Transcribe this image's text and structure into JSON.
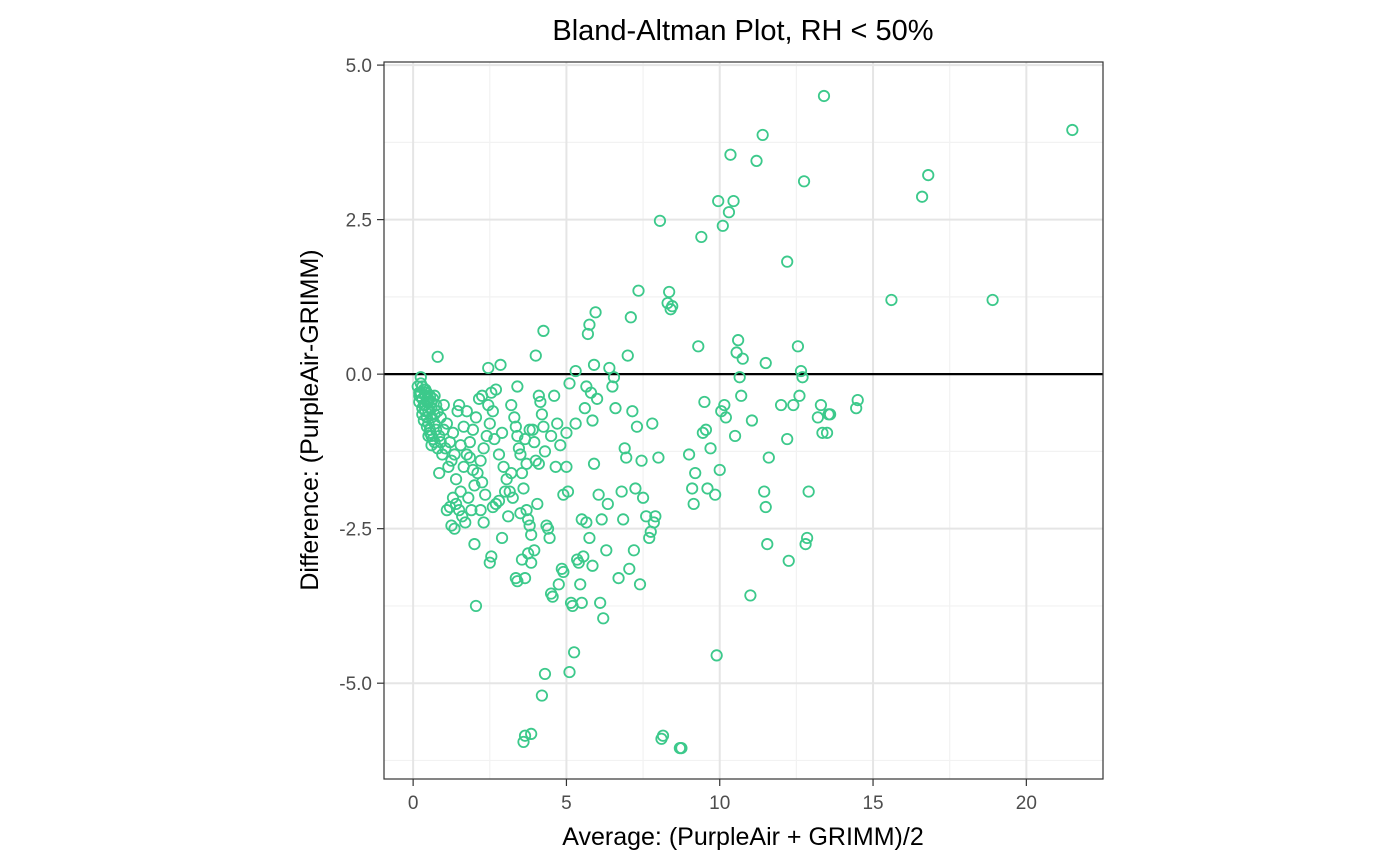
{
  "chart_data": {
    "type": "scatter",
    "title": "Bland-Altman Plot, RH < 50%",
    "xlabel": "Average: (PurpleAir + GRIMM)/2",
    "ylabel": "Difference: (PurpleAir-GRIMM)",
    "xlim": [
      -0.95,
      22.5
    ],
    "ylim": [
      -6.55,
      5.05
    ],
    "x_ticks": [
      0,
      5,
      10,
      15,
      20
    ],
    "x_tick_labels": [
      "0",
      "5",
      "10",
      "15",
      "20"
    ],
    "y_ticks": [
      5,
      2.5,
      0,
      -2.5,
      -5
    ],
    "y_tick_labels": [
      "5.0",
      "2.5",
      "0.0",
      "-2.5",
      "-5.0"
    ],
    "grid": true,
    "reference_line_y": 0,
    "point_color": "#3cc98b",
    "points": [
      [
        0.15,
        -0.2
      ],
      [
        0.2,
        -0.3
      ],
      [
        0.25,
        -0.05
      ],
      [
        0.3,
        -0.4
      ],
      [
        0.35,
        -0.5
      ],
      [
        0.4,
        -0.6
      ],
      [
        0.45,
        -0.7
      ],
      [
        0.5,
        -0.8
      ],
      [
        0.55,
        -0.9
      ],
      [
        0.6,
        -1.0
      ],
      [
        0.2,
        -0.45
      ],
      [
        0.3,
        -0.55
      ],
      [
        0.4,
        -0.35
      ],
      [
        0.5,
        -0.45
      ],
      [
        0.6,
        -0.55
      ],
      [
        0.7,
        -0.65
      ],
      [
        0.35,
        -0.75
      ],
      [
        0.45,
        -0.85
      ],
      [
        0.55,
        -0.95
      ],
      [
        0.65,
        -1.05
      ],
      [
        0.25,
        -0.3
      ],
      [
        0.35,
        -0.25
      ],
      [
        0.45,
        -0.3
      ],
      [
        0.55,
        -0.35
      ],
      [
        0.65,
        -0.4
      ],
      [
        0.75,
        -0.5
      ],
      [
        0.8,
        -0.6
      ],
      [
        0.7,
        -0.8
      ],
      [
        0.6,
        -0.7
      ],
      [
        0.5,
        -0.6
      ],
      [
        0.4,
        -0.5
      ],
      [
        0.3,
        -0.65
      ],
      [
        0.2,
        -0.35
      ],
      [
        0.75,
        -0.9
      ],
      [
        0.85,
        -1.0
      ],
      [
        0.9,
        -1.1
      ],
      [
        0.8,
        -1.2
      ],
      [
        0.7,
        -1.1
      ],
      [
        0.6,
        -1.15
      ],
      [
        0.5,
        -1.0
      ],
      [
        0.95,
        -1.3
      ],
      [
        0.85,
        -1.6
      ],
      [
        1.0,
        -0.5
      ],
      [
        1.1,
        -0.8
      ],
      [
        0.8,
        0.28
      ],
      [
        0.25,
        -0.15
      ],
      [
        0.3,
        -0.2
      ],
      [
        0.4,
        -0.25
      ],
      [
        0.5,
        -0.4
      ],
      [
        0.6,
        -0.45
      ],
      [
        0.7,
        -0.35
      ],
      [
        0.9,
        -0.7
      ],
      [
        1.0,
        -0.9
      ],
      [
        1.05,
        -1.2
      ],
      [
        1.2,
        -1.1
      ],
      [
        1.3,
        -0.95
      ],
      [
        1.15,
        -1.5
      ],
      [
        1.25,
        -1.4
      ],
      [
        1.35,
        -1.3
      ],
      [
        1.45,
        -0.6
      ],
      [
        1.5,
        -0.5
      ],
      [
        1.4,
        -1.7
      ],
      [
        1.55,
        -1.9
      ],
      [
        1.65,
        -1.5
      ],
      [
        1.75,
        -1.3
      ],
      [
        1.85,
        -1.1
      ],
      [
        1.95,
        -0.9
      ],
      [
        2.05,
        -0.7
      ],
      [
        2.15,
        -0.4
      ],
      [
        2.25,
        -0.35
      ],
      [
        1.3,
        -2.0
      ],
      [
        1.4,
        -2.1
      ],
      [
        1.5,
        -2.2
      ],
      [
        1.6,
        -2.3
      ],
      [
        1.7,
        -2.4
      ],
      [
        1.2,
        -2.15
      ],
      [
        1.1,
        -2.2
      ],
      [
        1.25,
        -2.45
      ],
      [
        1.35,
        -2.5
      ],
      [
        1.8,
        -2.0
      ],
      [
        1.9,
        -2.2
      ],
      [
        2.0,
        -1.8
      ],
      [
        2.1,
        -1.6
      ],
      [
        2.2,
        -1.4
      ],
      [
        2.3,
        -1.2
      ],
      [
        2.4,
        -1.0
      ],
      [
        2.5,
        -0.8
      ],
      [
        2.6,
        -0.6
      ],
      [
        2.7,
        -0.25
      ],
      [
        2.8,
        -1.3
      ],
      [
        2.0,
        -2.75
      ],
      [
        2.05,
        -3.75
      ],
      [
        2.2,
        -2.2
      ],
      [
        2.3,
        -2.4
      ],
      [
        2.5,
        -3.05
      ],
      [
        2.55,
        -2.95
      ],
      [
        2.6,
        -2.15
      ],
      [
        2.7,
        -2.1
      ],
      [
        2.8,
        -2.05
      ],
      [
        2.9,
        -2.65
      ],
      [
        2.45,
        0.1
      ],
      [
        2.85,
        0.15
      ],
      [
        2.95,
        -1.5
      ],
      [
        3.05,
        -1.7
      ],
      [
        3.15,
        -1.9
      ],
      [
        3.25,
        -2.0
      ],
      [
        3.1,
        -2.3
      ],
      [
        3.2,
        -0.5
      ],
      [
        3.3,
        -0.7
      ],
      [
        3.35,
        -0.85
      ],
      [
        3.4,
        -1.0
      ],
      [
        3.45,
        -1.2
      ],
      [
        3.5,
        -1.3
      ],
      [
        3.55,
        -1.6
      ],
      [
        3.6,
        -1.85
      ],
      [
        3.65,
        -1.05
      ],
      [
        3.7,
        -2.2
      ],
      [
        3.75,
        -2.35
      ],
      [
        3.8,
        -2.45
      ],
      [
        3.85,
        -2.6
      ],
      [
        3.35,
        -3.3
      ],
      [
        3.4,
        -3.35
      ],
      [
        3.55,
        -3.0
      ],
      [
        3.65,
        -3.3
      ],
      [
        3.75,
        -2.9
      ],
      [
        3.85,
        -3.05
      ],
      [
        3.95,
        -2.85
      ],
      [
        3.6,
        -5.95
      ],
      [
        3.65,
        -5.85
      ],
      [
        3.85,
        -5.82
      ],
      [
        3.4,
        -0.2
      ],
      [
        3.9,
        -0.9
      ],
      [
        3.95,
        -1.1
      ],
      [
        4.0,
        -1.4
      ],
      [
        4.05,
        -2.1
      ],
      [
        4.1,
        -0.35
      ],
      [
        4.15,
        -0.45
      ],
      [
        4.2,
        -0.65
      ],
      [
        4.25,
        -0.85
      ],
      [
        4.3,
        -1.25
      ],
      [
        4.0,
        0.3
      ],
      [
        4.25,
        0.7
      ],
      [
        4.35,
        -2.45
      ],
      [
        4.4,
        -2.5
      ],
      [
        4.45,
        -2.65
      ],
      [
        4.5,
        -3.55
      ],
      [
        4.55,
        -3.6
      ],
      [
        4.3,
        -4.85
      ],
      [
        4.2,
        -5.2
      ],
      [
        4.6,
        -0.35
      ],
      [
        4.7,
        -0.8
      ],
      [
        4.8,
        -1.15
      ],
      [
        4.85,
        -3.15
      ],
      [
        4.9,
        -3.2
      ],
      [
        4.75,
        -3.4
      ],
      [
        5.0,
        -1.5
      ],
      [
        5.05,
        -1.9
      ],
      [
        5.1,
        -0.15
      ],
      [
        5.15,
        -3.7
      ],
      [
        5.2,
        -3.75
      ],
      [
        5.1,
        -4.82
      ],
      [
        5.25,
        -4.5
      ],
      [
        5.3,
        -0.8
      ],
      [
        5.35,
        -3.0
      ],
      [
        5.4,
        -3.05
      ],
      [
        5.45,
        -3.4
      ],
      [
        5.5,
        -3.7
      ],
      [
        5.55,
        -2.95
      ],
      [
        5.6,
        -0.55
      ],
      [
        5.65,
        -0.2
      ],
      [
        5.7,
        0.65
      ],
      [
        5.75,
        0.8
      ],
      [
        5.8,
        -0.3
      ],
      [
        5.85,
        -0.75
      ],
      [
        5.9,
        0.15
      ],
      [
        5.95,
        1.0
      ],
      [
        6.0,
        -0.4
      ],
      [
        6.05,
        -1.95
      ],
      [
        6.1,
        -3.7
      ],
      [
        6.15,
        -2.35
      ],
      [
        5.3,
        0.05
      ],
      [
        5.5,
        -2.35
      ],
      [
        5.65,
        -2.4
      ],
      [
        5.75,
        -2.65
      ],
      [
        5.85,
        -3.1
      ],
      [
        5.9,
        -1.45
      ],
      [
        6.2,
        -3.95
      ],
      [
        6.3,
        -2.85
      ],
      [
        6.35,
        -2.1
      ],
      [
        6.4,
        0.1
      ],
      [
        6.5,
        -0.2
      ],
      [
        6.55,
        -0.05
      ],
      [
        6.6,
        -0.55
      ],
      [
        6.7,
        -3.3
      ],
      [
        6.8,
        -1.9
      ],
      [
        6.85,
        -2.35
      ],
      [
        6.9,
        -1.2
      ],
      [
        6.95,
        -1.35
      ],
      [
        7.0,
        0.3
      ],
      [
        7.05,
        -3.15
      ],
      [
        7.1,
        0.92
      ],
      [
        7.15,
        -0.6
      ],
      [
        7.2,
        -2.85
      ],
      [
        7.25,
        -1.85
      ],
      [
        7.3,
        -0.85
      ],
      [
        7.35,
        1.35
      ],
      [
        7.4,
        -3.4
      ],
      [
        7.45,
        -1.4
      ],
      [
        7.5,
        -2.0
      ],
      [
        7.6,
        -2.3
      ],
      [
        7.7,
        -2.65
      ],
      [
        7.75,
        -2.55
      ],
      [
        7.85,
        -2.4
      ],
      [
        7.9,
        -2.3
      ],
      [
        7.8,
        -0.8
      ],
      [
        8.0,
        -1.35
      ],
      [
        8.05,
        2.48
      ],
      [
        8.1,
        -5.9
      ],
      [
        8.15,
        -5.85
      ],
      [
        8.3,
        1.15
      ],
      [
        8.35,
        1.33
      ],
      [
        8.4,
        1.05
      ],
      [
        8.45,
        1.1
      ],
      [
        8.7,
        -6.05
      ],
      [
        8.75,
        -6.05
      ],
      [
        9.0,
        -1.3
      ],
      [
        9.1,
        -1.85
      ],
      [
        9.15,
        -2.1
      ],
      [
        9.2,
        -1.6
      ],
      [
        9.3,
        0.45
      ],
      [
        9.4,
        2.22
      ],
      [
        9.45,
        -0.95
      ],
      [
        9.5,
        -0.45
      ],
      [
        9.55,
        -0.9
      ],
      [
        9.6,
        -1.85
      ],
      [
        9.7,
        -1.2
      ],
      [
        9.85,
        -1.95
      ],
      [
        9.9,
        -4.55
      ],
      [
        9.95,
        2.8
      ],
      [
        10.0,
        -1.55
      ],
      [
        10.05,
        -0.6
      ],
      [
        10.1,
        2.4
      ],
      [
        10.15,
        -0.5
      ],
      [
        10.2,
        -0.7
      ],
      [
        10.3,
        2.62
      ],
      [
        10.35,
        3.55
      ],
      [
        10.45,
        2.8
      ],
      [
        10.5,
        -1.0
      ],
      [
        10.55,
        0.35
      ],
      [
        10.6,
        0.55
      ],
      [
        10.65,
        -0.05
      ],
      [
        10.7,
        -0.35
      ],
      [
        10.75,
        0.25
      ],
      [
        11.0,
        -3.58
      ],
      [
        11.05,
        -0.75
      ],
      [
        11.2,
        3.45
      ],
      [
        11.4,
        3.87
      ],
      [
        11.45,
        -1.9
      ],
      [
        11.5,
        -2.15
      ],
      [
        11.55,
        -2.75
      ],
      [
        11.5,
        0.18
      ],
      [
        11.6,
        -1.35
      ],
      [
        12.2,
        1.82
      ],
      [
        12.25,
        -3.02
      ],
      [
        12.4,
        -0.5
      ],
      [
        12.55,
        0.45
      ],
      [
        12.6,
        -0.35
      ],
      [
        12.65,
        0.05
      ],
      [
        12.7,
        -0.05
      ],
      [
        12.75,
        3.12
      ],
      [
        12.8,
        -2.75
      ],
      [
        12.85,
        -2.65
      ],
      [
        12.9,
        -1.9
      ],
      [
        13.2,
        -0.7
      ],
      [
        13.3,
        -0.5
      ],
      [
        13.35,
        -0.95
      ],
      [
        13.4,
        4.5
      ],
      [
        13.5,
        -0.95
      ],
      [
        13.55,
        -0.65
      ],
      [
        13.6,
        -0.65
      ],
      [
        14.45,
        -0.55
      ],
      [
        14.5,
        -0.42
      ],
      [
        15.6,
        1.2
      ],
      [
        16.6,
        2.87
      ],
      [
        16.8,
        3.22
      ],
      [
        18.9,
        1.2
      ],
      [
        21.5,
        3.95
      ],
      [
        12.2,
        -1.05
      ],
      [
        12.0,
        -0.5
      ],
      [
        2.9,
        -0.95
      ],
      [
        1.55,
        -1.15
      ],
      [
        1.65,
        -0.85
      ],
      [
        1.75,
        -0.6
      ],
      [
        1.85,
        -1.35
      ],
      [
        1.95,
        -1.55
      ],
      [
        2.25,
        -1.75
      ],
      [
        2.35,
        -1.95
      ],
      [
        2.45,
        -0.5
      ],
      [
        2.55,
        -0.3
      ],
      [
        2.65,
        -1.05
      ],
      [
        3.0,
        -1.9
      ],
      [
        3.2,
        -1.6
      ],
      [
        3.5,
        -2.25
      ],
      [
        3.7,
        -1.45
      ],
      [
        3.8,
        -0.9
      ],
      [
        4.1,
        -1.45
      ],
      [
        4.5,
        -1.0
      ],
      [
        4.65,
        -1.5
      ],
      [
        4.9,
        -1.95
      ],
      [
        5.0,
        -0.95
      ]
    ]
  }
}
